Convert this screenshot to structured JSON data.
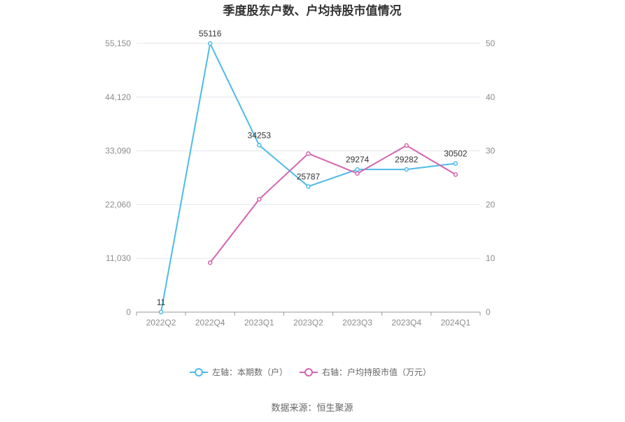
{
  "title": "季度股东户数、户均持股市值情况",
  "source": "数据来源：恒生聚源",
  "colors": {
    "left_series": "#4dbbe8",
    "right_series": "#d465b0",
    "grid": "#e3e6ee",
    "axis": "#999999"
  },
  "chart_data": {
    "type": "line",
    "categories": [
      "2022Q2",
      "2022Q4",
      "2023Q1",
      "2023Q2",
      "2023Q3",
      "2023Q4",
      "2024Q1"
    ],
    "left_axis": {
      "ylim": [
        0,
        55150
      ],
      "ticks": [
        0,
        11030,
        22060,
        33090,
        44120,
        55150
      ],
      "tick_labels": [
        "0",
        "11,030",
        "22,060",
        "33,090",
        "44,120",
        "55,150"
      ]
    },
    "right_axis": {
      "ylim": [
        0,
        50
      ],
      "ticks": [
        0,
        10,
        20,
        30,
        40,
        50
      ],
      "tick_labels": [
        "0",
        "10",
        "20",
        "30",
        "40",
        "50"
      ]
    },
    "series": [
      {
        "name": "左轴：本期数（户）",
        "axis": "left",
        "values": [
          11,
          55116,
          34253,
          25787,
          29274,
          29282,
          30502
        ],
        "labels": [
          "11",
          "55116",
          "34253",
          "25787",
          "29274",
          "29282",
          "30502"
        ]
      },
      {
        "name": "右轴：户均持股市值（万元）",
        "axis": "right",
        "values": [
          null,
          9.2,
          21.0,
          29.5,
          25.8,
          31.0,
          25.6
        ]
      }
    ],
    "legend_position": "bottom",
    "grid": true
  }
}
